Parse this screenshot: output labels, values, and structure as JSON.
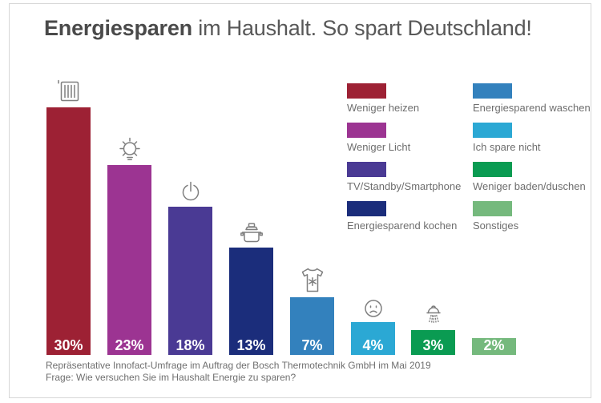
{
  "title": {
    "bold": "Energiesparen",
    "regular": "im Haushalt. So spart Deutschland!"
  },
  "legend": {
    "items": [
      {
        "label": "Weniger heizen",
        "color": "#9d2134"
      },
      {
        "label": "Energiesparend waschen",
        "color": "#3381bd"
      },
      {
        "label": "Weniger Licht",
        "color": "#9c3492"
      },
      {
        "label": "Ich spare nicht",
        "color": "#2ba8d4"
      },
      {
        "label": "TV/Standby/Smartphone",
        "color": "#4a3a94"
      },
      {
        "label": "Weniger baden/duschen",
        "color": "#0a9b52"
      },
      {
        "label": "Energiesparend kochen",
        "color": "#1b2d7b"
      },
      {
        "label": "Sonstiges",
        "color": "#75b97d"
      }
    ]
  },
  "chart_data": {
    "type": "bar",
    "title": "Energiesparen im Haushalt. So spart Deutschland!",
    "unit": "percent",
    "categories": [
      "Weniger heizen",
      "Weniger Licht",
      "TV/Standby/Smartphone",
      "Energiesparend kochen",
      "Energiesparend waschen",
      "Ich spare nicht",
      "Weniger baden/duschen",
      "Sonstiges"
    ],
    "values": [
      30,
      23,
      18,
      13,
      7,
      4,
      3,
      2
    ],
    "value_labels": [
      "30%",
      "23%",
      "18%",
      "13%",
      "7%",
      "4%",
      "3%",
      "2%"
    ],
    "colors": [
      "#9d2134",
      "#9c3492",
      "#4a3a94",
      "#1b2d7b",
      "#3381bd",
      "#2ba8d4",
      "#0a9b52",
      "#75b97d"
    ],
    "icons": [
      "radiator-icon",
      "lightbulb-icon",
      "power-button-icon",
      "cooking-pot-icon",
      "tshirt-wash-icon",
      "sad-face-icon",
      "shower-icon",
      ""
    ],
    "ylim": [
      0,
      32
    ],
    "grid": false,
    "xlabel": "",
    "ylabel": "",
    "legend_position": "top-right",
    "source_note": "Repräsentative Innofact-Umfrage im Auftrag der Bosch Thermotechnik GmbH im Mai 2019",
    "question": "Frage: Wie versuchen Sie im Haushalt Energie zu sparen?"
  },
  "footer": {
    "line1": "Repräsentative Innofact-Umfrage im Auftrag der Bosch Thermotechnik GmbH im Mai 2019",
    "line2": "Frage: Wie versuchen Sie im Haushalt Energie zu sparen?"
  }
}
